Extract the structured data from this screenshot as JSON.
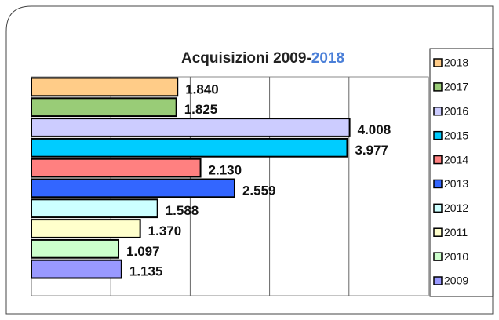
{
  "chart_data": {
    "type": "barh",
    "title": [
      "Acquisizioni 2009-",
      "2018"
    ],
    "categories": [
      "2009",
      "2010",
      "2011",
      "2012",
      "2013",
      "2014",
      "2015",
      "2016",
      "2017",
      "2018"
    ],
    "values": [
      1135,
      1097,
      1370,
      1588,
      2559,
      2130,
      3977,
      4008,
      1825,
      1840
    ],
    "value_labels": [
      "1.135",
      "1.097",
      "1.370",
      "1.588",
      "2.559",
      "2.130",
      "3.977",
      "4.008",
      "1.825",
      "1.840"
    ],
    "colors": [
      "#9999ff",
      "#ccffcc",
      "#ffffcc",
      "#ccffff",
      "#3366ff",
      "#ff8080",
      "#00ccff",
      "#ccccff",
      "#99cc77",
      "#ffcc88"
    ],
    "xlim": [
      0,
      5000
    ],
    "xticks": [
      0,
      1000,
      2000,
      3000,
      4000,
      5000
    ],
    "grid": true,
    "legend": "right"
  }
}
